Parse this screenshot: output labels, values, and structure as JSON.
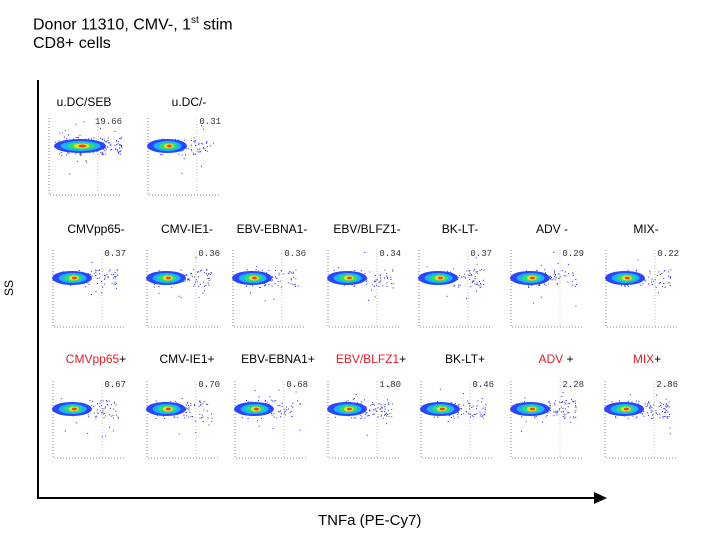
{
  "header": {
    "line1_a": "Donor 11310, CMV-, 1",
    "line1_sup": "st",
    "line1_b": " stim",
    "line2": "CD8+ cells"
  },
  "chart_data": {
    "type": "scatter",
    "title": "Donor 11310, CMV-, 1st stim CD8+ cells",
    "xlabel": "TNFa  (PE-Cy7)",
    "ylabel": "SS",
    "panels": [
      {
        "label": "u.DC/SEB",
        "value": "19.66"
      },
      {
        "label": "u.DC/-",
        "value": "0.31"
      },
      {
        "label": "CMVpp65-",
        "value": "0.37"
      },
      {
        "label": "CMV-IE1-",
        "value": "0.36"
      },
      {
        "label": "EBV-EBNA1-",
        "value": "0.36"
      },
      {
        "label": "EBV/BLFZ1-",
        "value": "0.34"
      },
      {
        "label": "BK-LT-",
        "value": "0.37"
      },
      {
        "label": "ADV -",
        "value": "0.29"
      },
      {
        "label": "MIX-",
        "value": "0.22"
      },
      {
        "label": "CMVpp65",
        "label_suffix": "+",
        "label_color": "#e0202a",
        "value": "0.67"
      },
      {
        "label": "CMV-IE1+",
        "value": "0.70"
      },
      {
        "label": "EBV-EBNA1+",
        "value": "0.68"
      },
      {
        "label": "EBV/BLFZ1",
        "label_suffix": "+",
        "label_color": "#e0202a",
        "value": "1.80"
      },
      {
        "label": "BK-LT+",
        "value": "0.46"
      },
      {
        "label": "ADV",
        "label_suffix": " +",
        "label_color": "#e0202a",
        "value": "2.28"
      },
      {
        "label": "MIX",
        "label_suffix": "+",
        "label_color": "#e0202a",
        "value": "2.86"
      }
    ]
  }
}
